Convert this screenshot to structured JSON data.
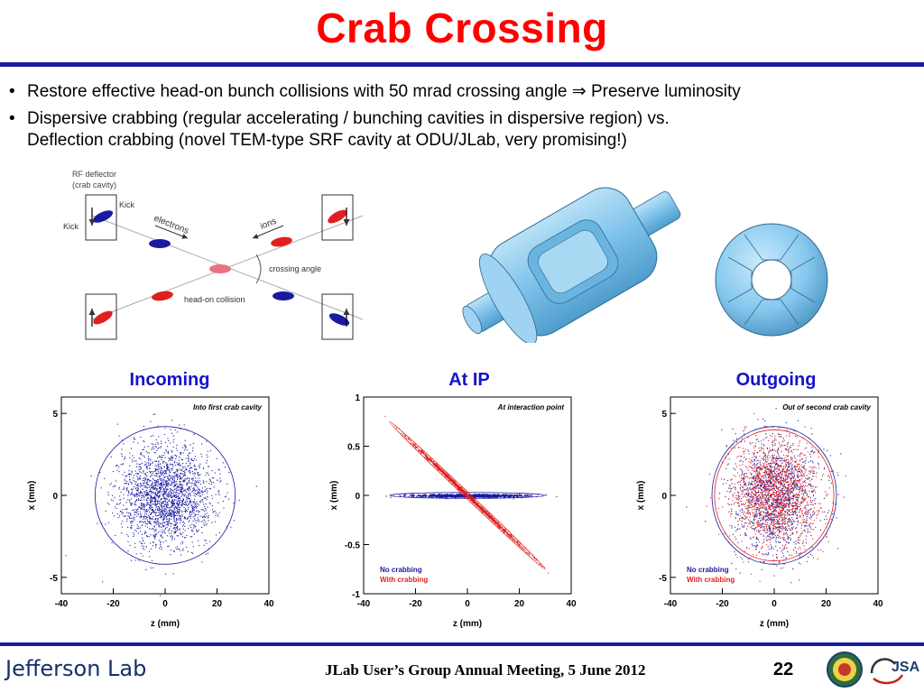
{
  "title": "Crab Crossing",
  "bullets": [
    {
      "text": "Restore effective head-on bunch collisions with 50 mrad crossing angle  ⇒ Preserve luminosity"
    },
    {
      "line1": "Dispersive crabbing (regular accelerating / bunching cavities in dispersive region) vs.",
      "line2": "Deflection crabbing (novel TEM-type SRF cavity at ODU/JLab, very promising!)"
    }
  ],
  "bullet_symbol": "•",
  "diagram": {
    "rf_deflector": "RF deflector",
    "crab_cavity": "(crab cavity)",
    "kick": "Kick",
    "electrons": "electrons",
    "ions": "ions",
    "crossing_angle": "crossing angle",
    "head_on": "head-on collision"
  },
  "plots": [
    {
      "title": "Incoming",
      "inner": "Into first crab cavity"
    },
    {
      "title": "At IP",
      "inner": "At interaction point"
    },
    {
      "title": "Outgoing",
      "inner": "Out of second crab cavity"
    }
  ],
  "axes": {
    "xlabel": "z (mm)",
    "ylabel": "x (mm)",
    "xticks": [
      "-40",
      "-20",
      "0",
      "20",
      "40"
    ],
    "yticks_mm": [
      "5",
      "0",
      "-5"
    ],
    "yticks_ip": [
      "1",
      "0.5",
      "0",
      "-0.5",
      "-1"
    ]
  },
  "legend": {
    "no_crab": "No crabbing",
    "with_crab": "With crabbing"
  },
  "colors": {
    "title": "#ff0000",
    "rule": "#1a1aa0",
    "plot_title": "#1414c8",
    "electron": "#1a1aa0",
    "ion": "#e02020",
    "cavity": "#8ccbef"
  },
  "footer": {
    "lab": "Jefferson Lab",
    "meeting": "JLab User’s Group Annual Meeting, 5 June 2012",
    "page": "22",
    "jsa": "JSA"
  }
}
